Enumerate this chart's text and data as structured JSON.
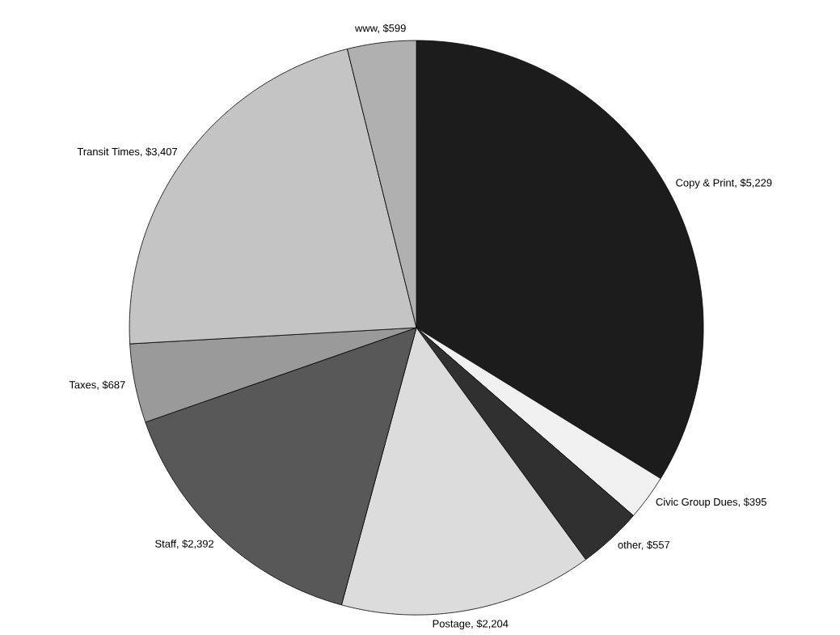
{
  "chart_data": {
    "type": "pie",
    "categories": [
      "Copy & Print, $5,229",
      "Civic Group Dues, $395",
      "other, $557",
      "Postage, $2,204",
      "Staff, $2,392",
      "Taxes, $687",
      "Transit Times, $3,407",
      "www, $599"
    ],
    "values": [
      5229,
      395,
      557,
      2204,
      2392,
      687,
      3407,
      599
    ],
    "colors": [
      "#1c1c1c",
      "#f0f0f0",
      "#303030",
      "#dcdcdc",
      "#585858",
      "#9a9a9a",
      "#c4c4c4",
      "#b0b0b0"
    ]
  }
}
